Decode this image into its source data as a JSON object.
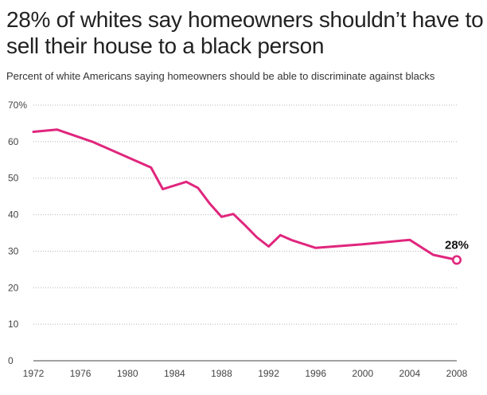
{
  "chart_data": {
    "type": "line",
    "title": "28% of whites say homeowners shouldn’t have to sell their house to a black person",
    "subtitle": "Percent of white Americans saying homeowners should be able to discriminate against blacks",
    "xlabel": "",
    "ylabel": "",
    "ylim": [
      0,
      70
    ],
    "xlim": [
      1972,
      2008
    ],
    "y_ticks": [
      0,
      10,
      20,
      30,
      40,
      50,
      60,
      70
    ],
    "y_tick_labels": [
      "0",
      "10",
      "20",
      "30",
      "40",
      "50",
      "60",
      "70%"
    ],
    "x_ticks": [
      1972,
      1976,
      1980,
      1984,
      1988,
      1992,
      1996,
      2000,
      2004,
      2008
    ],
    "x_tick_labels": [
      "1972",
      "1976",
      "1980",
      "1984",
      "1988",
      "1992",
      "1996",
      "2000",
      "2004",
      "2008"
    ],
    "grid": "horizontal-dotted",
    "line_color": "#e0267d",
    "series": [
      {
        "x": [
          1972,
          1974,
          1977,
          1982,
          1983,
          1985,
          1986,
          1987,
          1988,
          1989,
          1990,
          1991,
          1992,
          1993,
          1994,
          1996,
          1998,
          2000,
          2002,
          2004,
          2006,
          2008
        ],
        "values": [
          62.7,
          63.3,
          60.0,
          52.9,
          47.0,
          49.0,
          47.3,
          43.0,
          39.4,
          40.2,
          37.1,
          33.8,
          31.3,
          34.4,
          33.0,
          30.9,
          31.4,
          31.9,
          32.5,
          33.1,
          29.0,
          27.6
        ]
      }
    ],
    "annotation": {
      "label": "28%",
      "x": 2008,
      "y": 27.6
    }
  }
}
